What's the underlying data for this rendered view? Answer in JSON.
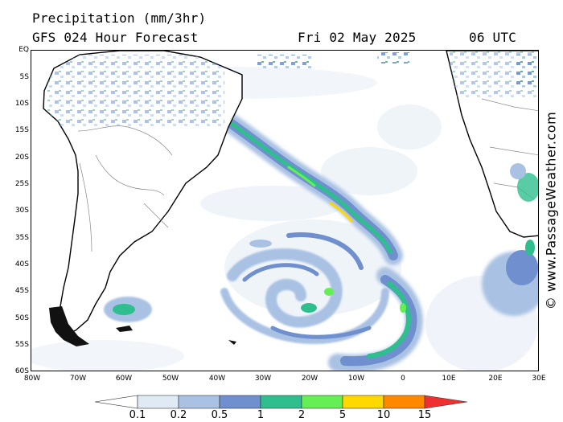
{
  "header": {
    "title": "Precipitation (mm/3hr)",
    "subtitle": "GFS 024 Hour Forecast",
    "date": "Fri 02 May 2025",
    "time": "06 UTC"
  },
  "map": {
    "region": "South Atlantic",
    "lat_labels": [
      "EQ",
      "5S",
      "10S",
      "15S",
      "20S",
      "25S",
      "30S",
      "35S",
      "40S",
      "45S",
      "50S",
      "55S",
      "60S"
    ],
    "lon_labels": [
      "80W",
      "70W",
      "60W",
      "50W",
      "40W",
      "30W",
      "20W",
      "10W",
      "0",
      "10E",
      "20E",
      "30E"
    ],
    "lat_range": [
      0,
      -60
    ],
    "lon_range": [
      -80,
      30
    ],
    "features": [
      "South America landmass",
      "Africa landmass",
      "Frontal precipitation band",
      "Low pressure system precipitation"
    ]
  },
  "legend": {
    "title": "",
    "levels": [
      "0.1",
      "0.2",
      "0.5",
      "1",
      "2",
      "5",
      "10",
      "15"
    ],
    "colors": [
      "#ffffff",
      "#e0eaf4",
      "#a9c1e3",
      "#6f8fcf",
      "#2fbf8f",
      "#66ee55",
      "#ffd800",
      "#ff8800",
      "#ee3030"
    ]
  },
  "watermark": "© www.PassageWeather.com"
}
